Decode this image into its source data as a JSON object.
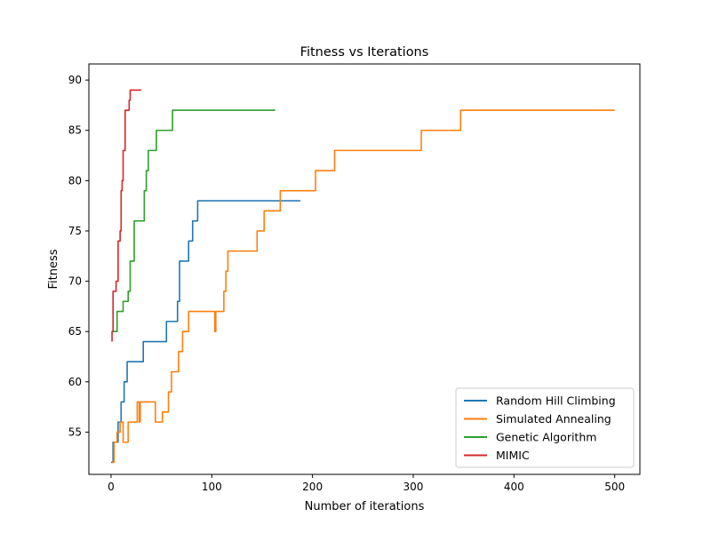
{
  "chart_data": {
    "type": "line",
    "title": "Fitness vs Iterations",
    "xlabel": "Number of iterations",
    "ylabel": "Fitness",
    "xlim": [
      -22,
      525
    ],
    "ylim": [
      50.8,
      91.6
    ],
    "xticks": [
      0,
      100,
      200,
      300,
      400,
      500
    ],
    "yticks": [
      55,
      60,
      65,
      70,
      75,
      80,
      85,
      90
    ],
    "grid": false,
    "legend_position": "lower-right",
    "series": [
      {
        "name": "Random Hill Climbing",
        "color": "#1f77b4",
        "points": [
          [
            0,
            52
          ],
          [
            2,
            52
          ],
          [
            2,
            54
          ],
          [
            7,
            54
          ],
          [
            7,
            56
          ],
          [
            10,
            56
          ],
          [
            10,
            58
          ],
          [
            13,
            58
          ],
          [
            13,
            60
          ],
          [
            16,
            60
          ],
          [
            16,
            62
          ],
          [
            32,
            62
          ],
          [
            32,
            64
          ],
          [
            55,
            64
          ],
          [
            55,
            66
          ],
          [
            66,
            66
          ],
          [
            66,
            68
          ],
          [
            68,
            68
          ],
          [
            68,
            72
          ],
          [
            77,
            72
          ],
          [
            77,
            74
          ],
          [
            81,
            74
          ],
          [
            81,
            76
          ],
          [
            86,
            76
          ],
          [
            86,
            78
          ],
          [
            188,
            78
          ]
        ]
      },
      {
        "name": "Simulated Annealing",
        "color": "#ff7f0e",
        "points": [
          [
            1,
            52
          ],
          [
            3,
            52
          ],
          [
            3,
            54
          ],
          [
            6,
            54
          ],
          [
            6,
            55
          ],
          [
            9,
            55
          ],
          [
            9,
            56
          ],
          [
            12,
            56
          ],
          [
            12,
            54
          ],
          [
            17,
            54
          ],
          [
            17,
            56
          ],
          [
            26,
            56
          ],
          [
            26,
            58
          ],
          [
            28,
            58
          ],
          [
            28,
            56
          ],
          [
            29,
            56
          ],
          [
            29,
            58
          ],
          [
            44,
            58
          ],
          [
            44,
            56
          ],
          [
            51,
            56
          ],
          [
            51,
            57
          ],
          [
            57,
            57
          ],
          [
            57,
            59
          ],
          [
            60,
            59
          ],
          [
            60,
            61
          ],
          [
            67,
            61
          ],
          [
            67,
            63
          ],
          [
            71,
            63
          ],
          [
            71,
            65
          ],
          [
            77,
            65
          ],
          [
            77,
            67
          ],
          [
            103,
            67
          ],
          [
            103,
            65
          ],
          [
            104,
            65
          ],
          [
            104,
            67
          ],
          [
            112,
            67
          ],
          [
            112,
            69
          ],
          [
            114,
            69
          ],
          [
            114,
            71
          ],
          [
            116,
            71
          ],
          [
            116,
            73
          ],
          [
            145,
            73
          ],
          [
            145,
            75
          ],
          [
            152,
            75
          ],
          [
            152,
            77
          ],
          [
            168,
            77
          ],
          [
            168,
            79
          ],
          [
            203,
            79
          ],
          [
            203,
            81
          ],
          [
            222,
            81
          ],
          [
            222,
            83
          ],
          [
            308,
            83
          ],
          [
            308,
            85
          ],
          [
            347,
            85
          ],
          [
            347,
            87
          ],
          [
            500,
            87
          ]
        ]
      },
      {
        "name": "Genetic Algorithm",
        "color": "#2ca02c",
        "points": [
          [
            2,
            65
          ],
          [
            6,
            65
          ],
          [
            6,
            67
          ],
          [
            12,
            67
          ],
          [
            12,
            68
          ],
          [
            17,
            68
          ],
          [
            17,
            69
          ],
          [
            19,
            69
          ],
          [
            19,
            72
          ],
          [
            23,
            72
          ],
          [
            23,
            76
          ],
          [
            33,
            76
          ],
          [
            33,
            79
          ],
          [
            35,
            79
          ],
          [
            35,
            81
          ],
          [
            37,
            81
          ],
          [
            37,
            83
          ],
          [
            45,
            83
          ],
          [
            45,
            85
          ],
          [
            61,
            85
          ],
          [
            61,
            87
          ],
          [
            163,
            87
          ]
        ]
      },
      {
        "name": "MIMIC",
        "color": "#d62728",
        "points": [
          [
            1,
            64
          ],
          [
            1,
            65
          ],
          [
            2,
            65
          ],
          [
            2,
            69
          ],
          [
            5,
            69
          ],
          [
            5,
            70
          ],
          [
            7,
            70
          ],
          [
            7,
            74
          ],
          [
            9,
            74
          ],
          [
            9,
            75
          ],
          [
            10,
            75
          ],
          [
            10,
            79
          ],
          [
            11,
            79
          ],
          [
            11,
            80
          ],
          [
            12,
            80
          ],
          [
            12,
            83
          ],
          [
            14,
            83
          ],
          [
            14,
            87
          ],
          [
            18,
            87
          ],
          [
            18,
            88
          ],
          [
            19,
            88
          ],
          [
            19,
            89
          ],
          [
            30,
            89
          ]
        ]
      }
    ]
  }
}
